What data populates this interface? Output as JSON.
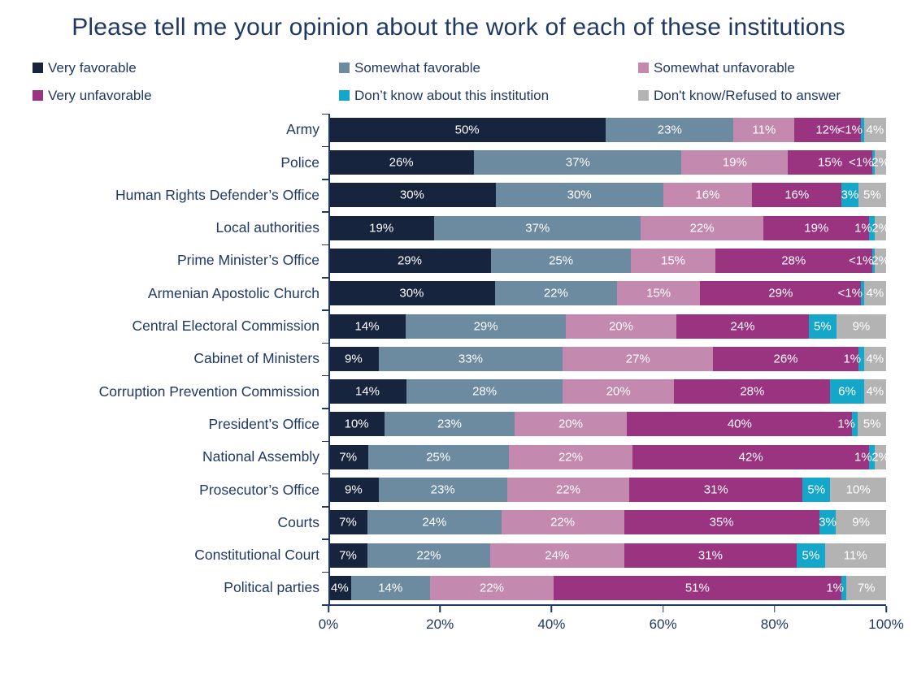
{
  "title": "Please tell me your opinion about the work of each of these institutions",
  "colors": {
    "text_navy": "#1F3864",
    "very_favorable": "#16243E",
    "somewhat_favorable": "#6C8AA0",
    "somewhat_unfavorable": "#C389AE",
    "very_unfavorable": "#9A3380",
    "dont_know_institution": "#14A7C9",
    "dont_know_refused": "#B3B3B3"
  },
  "legend": {
    "items": [
      {
        "label": "Very favorable",
        "color": "#16243E"
      },
      {
        "label": "Somewhat favorable",
        "color": "#6C8AA0"
      },
      {
        "label": "Somewhat unfavorable",
        "color": "#C389AE"
      },
      {
        "label": "Very unfavorable",
        "color": "#9A3380"
      },
      {
        "label": "Don’t know about this institution",
        "color": "#14A7C9"
      },
      {
        "label": "Don't know/Refused to answer",
        "color": "#B3B3B3"
      }
    ]
  },
  "chart_data": {
    "type": "bar",
    "stacked": true,
    "orientation": "horizontal",
    "xlim": [
      0,
      100
    ],
    "x_ticks": [
      "0%",
      "20%",
      "40%",
      "60%",
      "80%",
      "100%"
    ],
    "categories": [
      "Army",
      "Police",
      "Human Rights Defender’s Office",
      "Local authorities",
      "Prime Minister’s Office",
      "Armenian Apostolic Church",
      "Central Electoral Commission",
      "Cabinet of Ministers",
      "Corruption Prevention Commission",
      "President’s Office",
      "National Assembly",
      "Prosecutor’s Office",
      "Courts",
      "Constitutional Court",
      "Political parties"
    ],
    "series": [
      {
        "name": "Very favorable",
        "color": "#16243E",
        "values": [
          50,
          26,
          30,
          19,
          29,
          30,
          14,
          9,
          14,
          10,
          7,
          9,
          7,
          7,
          4
        ],
        "labels": [
          "50%",
          "26%",
          "30%",
          "19%",
          "29%",
          "30%",
          "14%",
          "9%",
          "14%",
          "10%",
          "7%",
          "9%",
          "7%",
          "7%",
          "4%"
        ]
      },
      {
        "name": "Somewhat favorable",
        "color": "#6C8AA0",
        "values": [
          23,
          37,
          30,
          37,
          25,
          22,
          29,
          33,
          28,
          23,
          25,
          23,
          24,
          22,
          14
        ],
        "labels": [
          "23%",
          "37%",
          "30%",
          "37%",
          "25%",
          "22%",
          "29%",
          "33%",
          "28%",
          "23%",
          "25%",
          "23%",
          "24%",
          "22%",
          "14%"
        ]
      },
      {
        "name": "Somewhat unfavorable",
        "color": "#C389AE",
        "values": [
          11,
          19,
          16,
          22,
          15,
          15,
          20,
          27,
          20,
          20,
          22,
          22,
          22,
          24,
          22
        ],
        "labels": [
          "11%",
          "19%",
          "16%",
          "22%",
          "15%",
          "15%",
          "20%",
          "27%",
          "20%",
          "20%",
          "22%",
          "22%",
          "22%",
          "24%",
          "22%"
        ]
      },
      {
        "name": "Very unfavorable",
        "color": "#9A3380",
        "values": [
          12,
          15,
          16,
          19,
          28,
          29,
          24,
          26,
          28,
          40,
          42,
          31,
          35,
          31,
          51
        ],
        "labels": [
          "12%",
          "15%",
          "16%",
          "19%",
          "28%",
          "29%",
          "24%",
          "26%",
          "28%",
          "40%",
          "42%",
          "31%",
          "35%",
          "31%",
          "51%"
        ]
      },
      {
        "name": "Don’t know about this institution",
        "color": "#14A7C9",
        "values": [
          0.5,
          0.5,
          3,
          1,
          0.5,
          0.5,
          5,
          1,
          6,
          1,
          1,
          5,
          3,
          5,
          1
        ],
        "labels": [
          "<1%",
          "<1%",
          "3%",
          "1%",
          "<1%",
          "<1%",
          "5%",
          "1%",
          "6%",
          "1%",
          "1%",
          "5%",
          "3%",
          "5%",
          "1%"
        ]
      },
      {
        "name": "Don't know/Refused to answer",
        "color": "#B3B3B3",
        "values": [
          4,
          2,
          5,
          2,
          2,
          4,
          9,
          4,
          4,
          5,
          2,
          10,
          9,
          11,
          7
        ],
        "labels": [
          "4%",
          "2%",
          "5%",
          "2%",
          "2%",
          "4%",
          "9%",
          "4%",
          "4%",
          "5%",
          "2%",
          "10%",
          "9%",
          "11%",
          "7%"
        ]
      }
    ]
  }
}
